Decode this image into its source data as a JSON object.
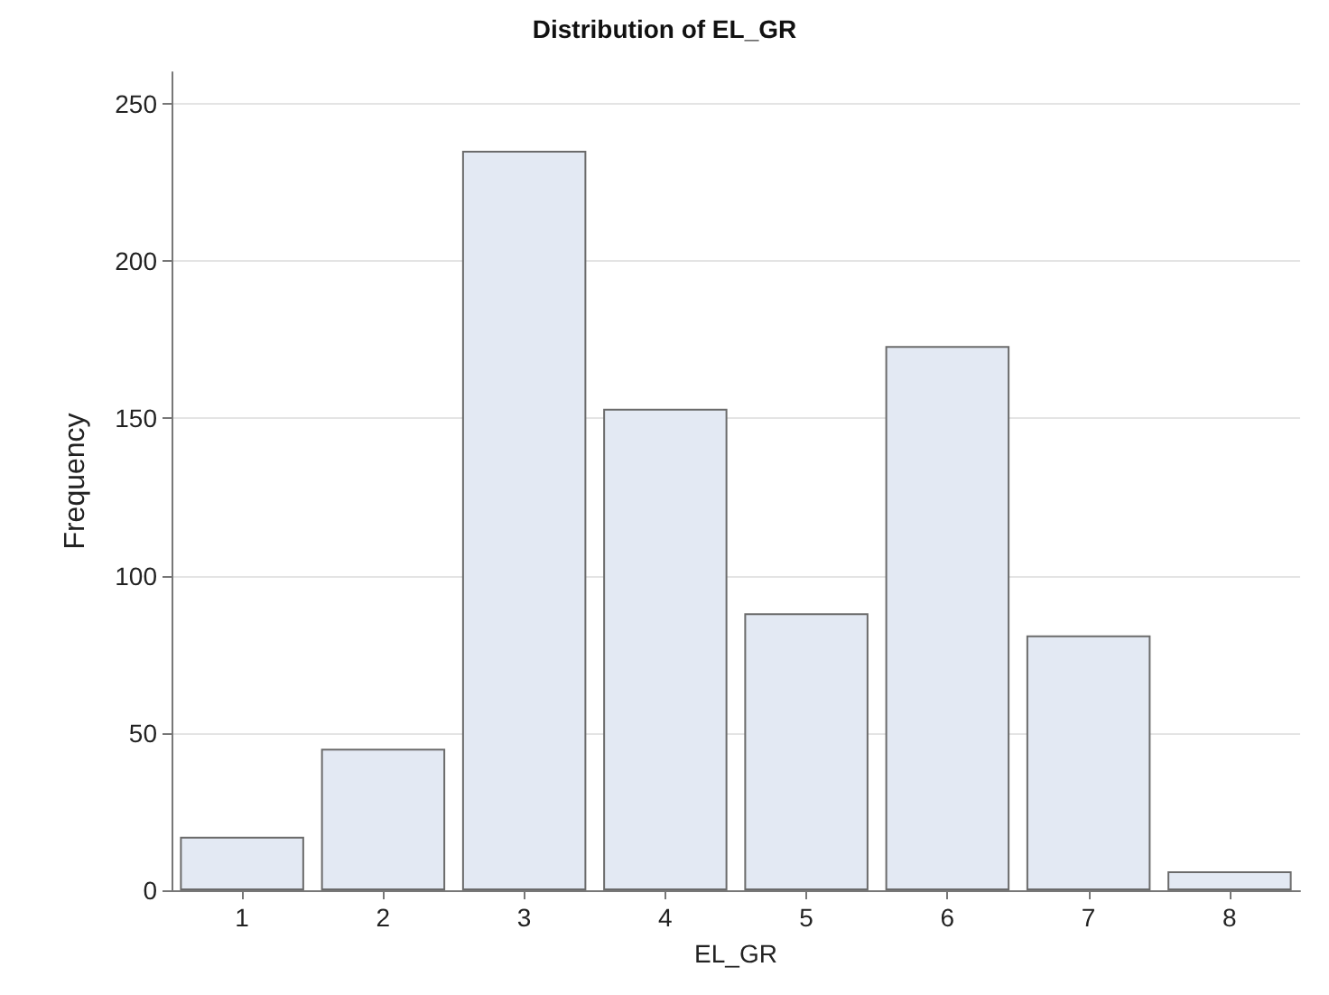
{
  "chart_data": {
    "type": "bar",
    "title": "Distribution of EL_GR",
    "xlabel": "EL_GR",
    "ylabel": "Frequency",
    "categories": [
      "1",
      "2",
      "3",
      "4",
      "5",
      "6",
      "7",
      "8"
    ],
    "values": [
      17,
      45,
      235,
      153,
      88,
      173,
      81,
      6
    ],
    "color": "#e3e9f3",
    "ylim": [
      0,
      260
    ],
    "yticks": [
      0,
      50,
      100,
      150,
      200,
      250
    ],
    "grid": "y"
  }
}
